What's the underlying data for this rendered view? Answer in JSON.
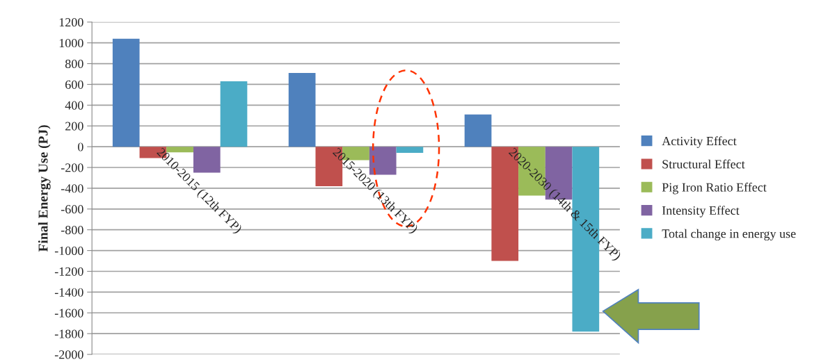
{
  "chart_data": {
    "type": "bar",
    "ylabel": "Final Energy Use (PJ)",
    "categories": [
      "2010-2015 (12th FYP)",
      "2015-2020 (13th FYP)",
      "2020-2030 (14th & 15th FYP)"
    ],
    "series": [
      {
        "name": "Activity Effect",
        "color": "#4f81bd",
        "values": [
          1040,
          710,
          310
        ]
      },
      {
        "name": "Structural Effect",
        "color": "#c0504d",
        "values": [
          -110,
          -380,
          -1100
        ]
      },
      {
        "name": "Pig Iron Ratio Effect",
        "color": "#9bbb59",
        "values": [
          -55,
          -130,
          -470
        ]
      },
      {
        "name": "Intensity Effect",
        "color": "#8064a2",
        "values": [
          -250,
          -270,
          -510
        ]
      },
      {
        "name": "Total change in energy use",
        "color": "#4bacc6",
        "values": [
          630,
          -60,
          -1780
        ]
      }
    ],
    "ylim": [
      -2000,
      1200
    ],
    "yticks": [
      -2000,
      -1800,
      -1600,
      -1400,
      -1200,
      -1000,
      -800,
      -600,
      -400,
      -200,
      0,
      200,
      400,
      600,
      800,
      1000,
      1200
    ],
    "grid": "y",
    "legend": "right"
  }
}
